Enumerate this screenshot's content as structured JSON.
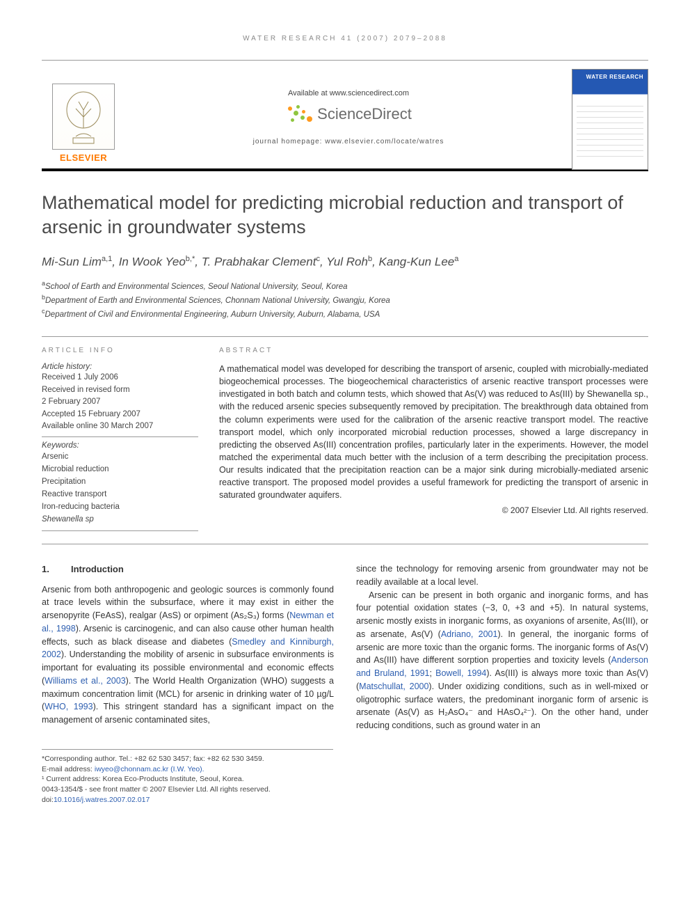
{
  "running_head": "WATER RESEARCH 41 (2007) 2079–2088",
  "banner": {
    "available_at": "Available at www.sciencedirect.com",
    "sd_brand": "ScienceDirect",
    "homepage_line": "journal homepage: www.elsevier.com/locate/watres",
    "publisher_name": "ELSEVIER",
    "journal_cover_title": "WATER RESEARCH",
    "sd_dot_colors": {
      "orange": "#ff9a1e",
      "green": "#8fc63f"
    }
  },
  "article": {
    "title": "Mathematical model for predicting microbial reduction and transport of arsenic in groundwater systems",
    "authors_html": "Mi-Sun Lim<sup>a,1</sup>, In Wook Yeo<sup>b,*</sup>, T. Prabhakar Clement<sup>c</sup>, Yul Roh<sup>b</sup>, Kang-Kun Lee<sup>a</sup>",
    "affiliations": [
      {
        "sup": "a",
        "text": "School of Earth and Environmental Sciences, Seoul National University, Seoul, Korea"
      },
      {
        "sup": "b",
        "text": "Department of Earth and Environmental Sciences, Chonnam National University, Gwangju, Korea"
      },
      {
        "sup": "c",
        "text": "Department of Civil and Environmental Engineering, Auburn University, Auburn, Alabama, USA"
      }
    ]
  },
  "info": {
    "heading": "ARTICLE INFO",
    "history_label": "Article history:",
    "history": [
      "Received 1 July 2006",
      "Received in revised form",
      "2 February 2007",
      "Accepted 15 February 2007",
      "Available online 30 March 2007"
    ],
    "keywords_label": "Keywords:",
    "keywords": [
      "Arsenic",
      "Microbial reduction",
      "Precipitation",
      "Reactive transport",
      "Iron-reducing bacteria",
      "Shewanella sp"
    ]
  },
  "abstract": {
    "heading": "ABSTRACT",
    "text": "A mathematical model was developed for describing the transport of arsenic, coupled with microbially-mediated biogeochemical processes. The biogeochemical characteristics of arsenic reactive transport processes were investigated in both batch and column tests, which showed that As(V) was reduced to As(III) by Shewanella sp., with the reduced arsenic species subsequently removed by precipitation. The breakthrough data obtained from the column experiments were used for the calibration of the arsenic reactive transport model. The reactive transport model, which only incorporated microbial reduction processes, showed a large discrepancy in predicting the observed As(III) concentration profiles, particularly later in the experiments. However, the model matched the experimental data much better with the inclusion of a term describing the precipitation process. Our results indicated that the precipitation reaction can be a major sink during microbially-mediated arsenic reactive transport. The proposed model provides a useful framework for predicting the transport of arsenic in saturated groundwater aquifers.",
    "copyright": "© 2007 Elsevier Ltd. All rights reserved."
  },
  "section1": {
    "num": "1.",
    "title": "Introduction"
  },
  "body_left": "Arsenic from both anthropogenic and geologic sources is commonly found at trace levels within the subsurface, where it may exist in either the arsenopyrite (FeAsS), realgar (AsS) or orpiment (As₂S₃) forms (<span class=\"ref-link\">Newman et al., 1998</span>). Arsenic is carcinogenic, and can also cause other human health effects, such as black disease and diabetes (<span class=\"ref-link\">Smedley and Kinniburgh, 2002</span>). Understanding the mobility of arsenic in subsurface environments is important for evaluating its possible environmental and economic effects (<span class=\"ref-link\">Williams et al., 2003</span>). The World Health Organization (WHO) suggests a maximum concentration limit (MCL) for arsenic in drinking water of 10 µg/L (<span class=\"ref-link\">WHO, 1993</span>). This stringent standard has a significant impact on the management of arsenic contaminated sites,",
  "body_right_p1": "since the technology for removing arsenic from groundwater may not be readily available at a local level.",
  "body_right_p2": "Arsenic can be present in both organic and inorganic forms, and has four potential oxidation states (−3, 0, +3 and +5). In natural systems, arsenic mostly exists in inorganic forms, as oxyanions of arsenite, As(III), or as arsenate, As(V) (<span class=\"ref-link\">Adriano, 2001</span>). In general, the inorganic forms of arsenic are more toxic than the organic forms. The inorganic forms of As(V) and As(III) have different sorption properties and toxicity levels (<span class=\"ref-link\">Anderson and Bruland, 1991</span>; <span class=\"ref-link\">Bowell, 1994</span>). As(III) is always more toxic than As(V) (<span class=\"ref-link\">Matschullat, 2000</span>). Under oxidizing conditions, such as in well-mixed or oligotrophic surface waters, the predominant inorganic form of arsenic is arsenate (As(V) as H₂AsO₄⁻ and HAsO₄²⁻). On the other hand, under reducing conditions, such as ground water in an",
  "footnotes": {
    "corr": "*Corresponding author. Tel.: +82 62 530 3457; fax: +82 62 530 3459.",
    "email_label": "E-mail address:",
    "email": "iwyeo@chonnam.ac.kr (I.W. Yeo).",
    "note1": "¹ Current address: Korea Eco-Products Institute, Seoul, Korea.",
    "front_matter": "0043-1354/$ - see front matter © 2007 Elsevier Ltd. All rights reserved.",
    "doi_label": "doi:",
    "doi": "10.1016/j.watres.2007.02.017"
  },
  "colors": {
    "link": "#2e5fb0",
    "elsevier_orange": "#ff7a00",
    "text": "#333333",
    "muted": "#888888",
    "rule": "#999999"
  },
  "typography": {
    "title_pt": 27,
    "authors_pt": 17,
    "body_pt": 12.5,
    "small_pt": 11.5,
    "running_head_pt": 10
  }
}
